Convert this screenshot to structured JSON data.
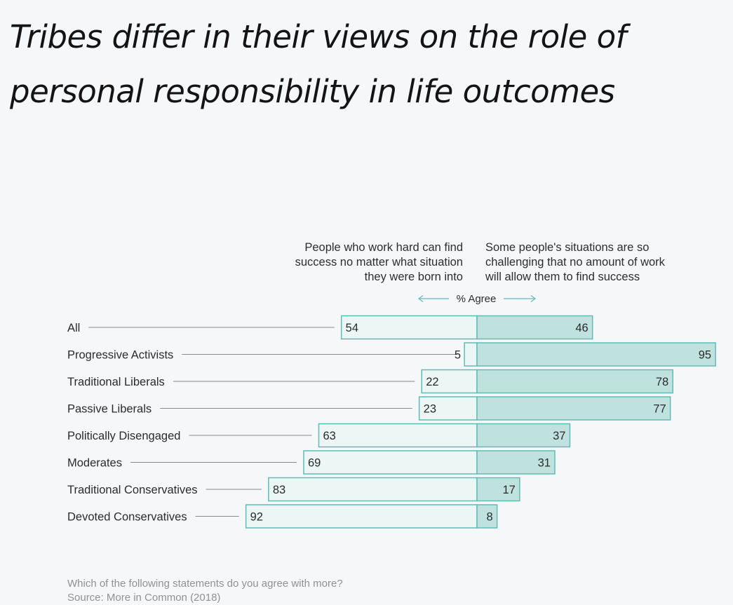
{
  "title": {
    "line1": "Tribes differ in their views on the role of",
    "line2": "personal responsibility in life outcomes"
  },
  "header": {
    "left": [
      "People who work hard can find",
      "success no matter what situation",
      "they were born into"
    ],
    "right": [
      "Some people's situations are so",
      "challenging that no amount of work",
      "will allow them to find success"
    ],
    "axis_label": "% Agree"
  },
  "footer": {
    "question": "Which of the following statements do you agree with more?",
    "source": "Source: More in Common (2018)"
  },
  "colors": {
    "left_fill": "#ebf6f5",
    "right_fill": "#bfe2df",
    "bar_stroke": "#5fbcb6",
    "leader_line": "#8a8a8a",
    "arrow": "#5fbcb6",
    "text": "#2b2b2b"
  },
  "chart_data": {
    "type": "bar",
    "orientation": "horizontal-diverging",
    "categories": [
      "All",
      "Progressive Activists",
      "Traditional Liberals",
      "Passive Liberals",
      "Politically Disengaged",
      "Moderates",
      "Traditional Conservatives",
      "Devoted Conservatives"
    ],
    "series": [
      {
        "name": "People who work hard can find success no matter what situation they were born into",
        "values": [
          54,
          5,
          22,
          23,
          63,
          69,
          83,
          92
        ]
      },
      {
        "name": "Some people's situations are so challenging that no amount of work will allow them to find success",
        "values": [
          46,
          95,
          78,
          77,
          37,
          31,
          17,
          8
        ]
      }
    ],
    "xlabel": "% Agree",
    "xlim": [
      0,
      100
    ],
    "grid": false,
    "legend": "top"
  }
}
